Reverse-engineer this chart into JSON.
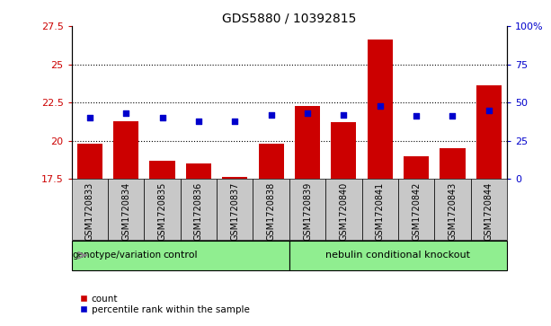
{
  "title": "GDS5880 / 10392815",
  "samples": [
    "GSM1720833",
    "GSM1720834",
    "GSM1720835",
    "GSM1720836",
    "GSM1720837",
    "GSM1720838",
    "GSM1720839",
    "GSM1720840",
    "GSM1720841",
    "GSM1720842",
    "GSM1720843",
    "GSM1720844"
  ],
  "counts": [
    19.8,
    21.3,
    18.7,
    18.5,
    17.6,
    19.8,
    22.3,
    21.2,
    26.6,
    19.0,
    19.5,
    23.6
  ],
  "percentiles": [
    40,
    43,
    40,
    38,
    38,
    42,
    43,
    42,
    48,
    41,
    41,
    45
  ],
  "ylim_left": [
    17.5,
    27.5
  ],
  "ylim_right": [
    0,
    100
  ],
  "yticks_left": [
    17.5,
    20.0,
    22.5,
    25.0,
    27.5
  ],
  "yticks_right": [
    0,
    25,
    50,
    75,
    100
  ],
  "ytick_labels_left": [
    "17.5",
    "20",
    "22.5",
    "25",
    "27.5"
  ],
  "ytick_labels_right": [
    "0",
    "25",
    "50",
    "75",
    "100%"
  ],
  "ctrl_label": "control",
  "nkout_label": "nebulin conditional knockout",
  "group_row_label": "genotype/variation",
  "bar_color": "#cc0000",
  "dot_color": "#0000cc",
  "background_plot": "#ffffff",
  "background_labels": "#c8c8c8",
  "group_color": "#90ee90",
  "bar_width": 0.7,
  "dot_size": 25,
  "grid_yticks": [
    20.0,
    22.5,
    25.0
  ],
  "legend_count": "count",
  "legend_pct": "percentile rank within the sample"
}
